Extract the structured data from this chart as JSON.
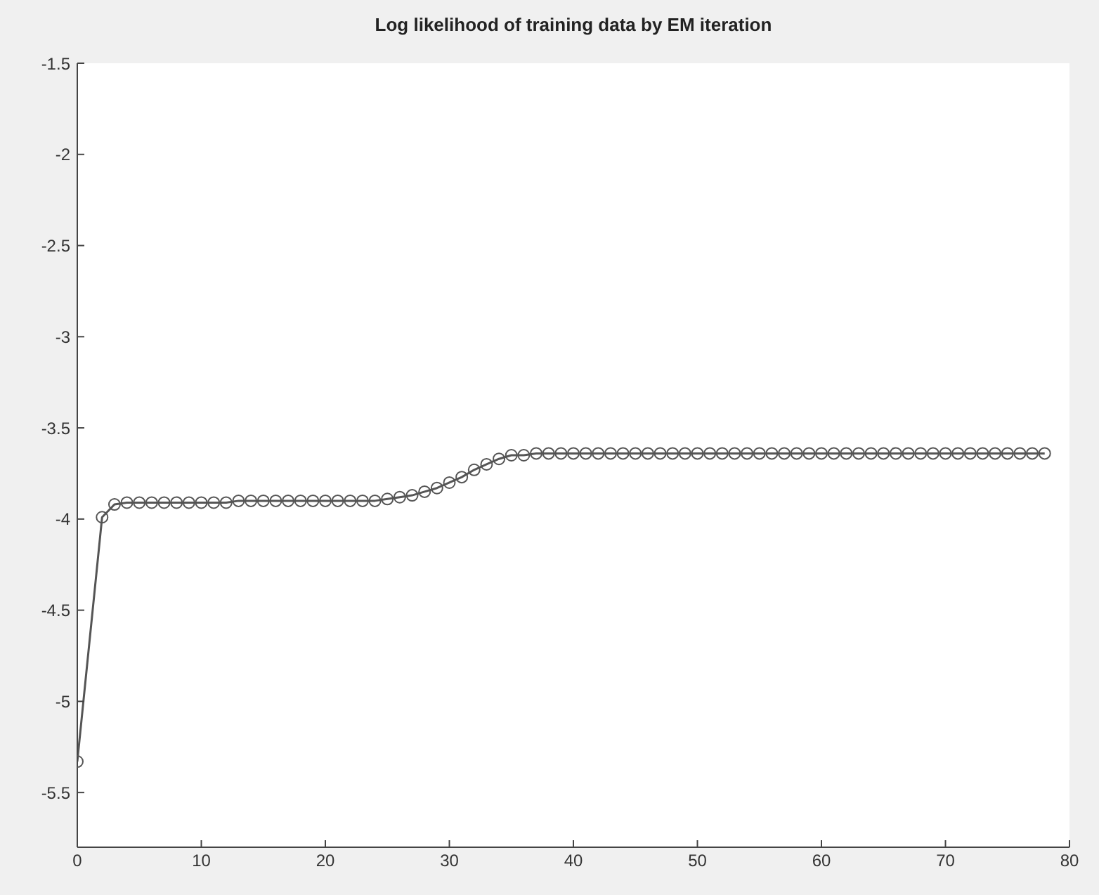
{
  "chart_data": {
    "type": "line",
    "title": "Log likelihood of training data by EM iteration",
    "xlim": [
      0,
      80
    ],
    "xticks": [
      0,
      10,
      20,
      30,
      40,
      50,
      60,
      70,
      80
    ],
    "ylim": [
      -5.8,
      -1.5
    ],
    "yticks": [
      -5.5,
      -5,
      -4.5,
      -4,
      -3.5,
      -3,
      -2.5,
      -2,
      -1.5
    ],
    "grid": false,
    "legend": false,
    "marker": "circle",
    "line_style": "solid",
    "series": [
      {
        "color": "#555555",
        "x": [
          0,
          2,
          3,
          4,
          5,
          6,
          7,
          8,
          9,
          10,
          11,
          12,
          13,
          14,
          15,
          16,
          17,
          18,
          19,
          20,
          21,
          22,
          23,
          24,
          25,
          26,
          27,
          28,
          29,
          30,
          31,
          32,
          33,
          34,
          35,
          36,
          37,
          38,
          39,
          40,
          41,
          42,
          43,
          44,
          45,
          46,
          47,
          48,
          49,
          50,
          51,
          52,
          53,
          54,
          55,
          56,
          57,
          58,
          59,
          60,
          61,
          62,
          63,
          64,
          65,
          66,
          67,
          68,
          69,
          70,
          71,
          72,
          73,
          74,
          75,
          76,
          77,
          78
        ],
        "values": [
          -5.33,
          -3.99,
          -3.92,
          -3.91,
          -3.91,
          -3.91,
          -3.91,
          -3.91,
          -3.91,
          -3.91,
          -3.91,
          -3.91,
          -3.9,
          -3.9,
          -3.9,
          -3.9,
          -3.9,
          -3.9,
          -3.9,
          -3.9,
          -3.9,
          -3.9,
          -3.9,
          -3.9,
          -3.89,
          -3.88,
          -3.87,
          -3.85,
          -3.83,
          -3.8,
          -3.77,
          -3.73,
          -3.7,
          -3.67,
          -3.65,
          -3.65,
          -3.64,
          -3.64,
          -3.64,
          -3.64,
          -3.64,
          -3.64,
          -3.64,
          -3.64,
          -3.64,
          -3.64,
          -3.64,
          -3.64,
          -3.64,
          -3.64,
          -3.64,
          -3.64,
          -3.64,
          -3.64,
          -3.64,
          -3.64,
          -3.64,
          -3.64,
          -3.64,
          -3.64,
          -3.64,
          -3.64,
          -3.64,
          -3.64,
          -3.64,
          -3.64,
          -3.64,
          -3.64,
          -3.64,
          -3.64,
          -3.64,
          -3.64,
          -3.64,
          -3.64,
          -3.64,
          -3.64,
          -3.64,
          -3.64
        ]
      }
    ]
  }
}
